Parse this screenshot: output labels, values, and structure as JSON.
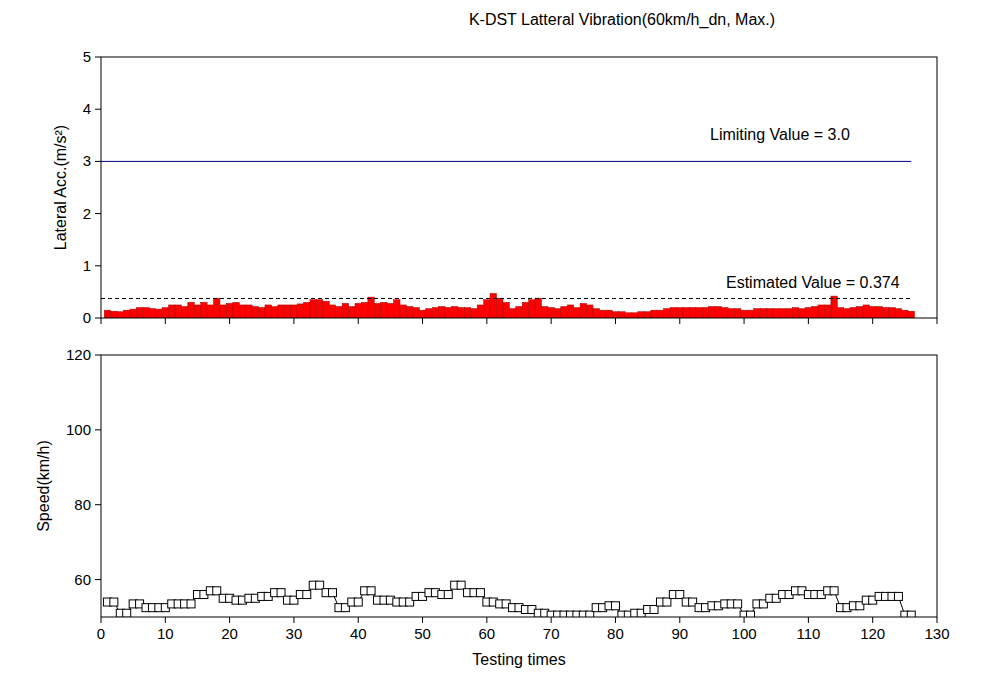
{
  "chart_data": [
    {
      "type": "bar",
      "title": "K-DST Latteral Vibration(60km/h_dn, Max.)",
      "y_label": "Lateral Acc.(m/s²)",
      "x": [
        1,
        2,
        3,
        4,
        5,
        6,
        7,
        8,
        9,
        10,
        11,
        12,
        13,
        14,
        15,
        16,
        17,
        18,
        19,
        20,
        21,
        22,
        23,
        24,
        25,
        26,
        27,
        28,
        29,
        30,
        31,
        32,
        33,
        34,
        35,
        36,
        37,
        38,
        39,
        40,
        41,
        42,
        43,
        44,
        45,
        46,
        47,
        48,
        49,
        50,
        51,
        52,
        53,
        54,
        55,
        56,
        57,
        58,
        59,
        60,
        61,
        62,
        63,
        64,
        65,
        66,
        67,
        68,
        69,
        70,
        71,
        72,
        73,
        74,
        75,
        76,
        77,
        78,
        79,
        80,
        81,
        82,
        83,
        84,
        85,
        86,
        87,
        88,
        89,
        90,
        91,
        92,
        93,
        94,
        95,
        96,
        97,
        98,
        99,
        100,
        101,
        102,
        103,
        104,
        105,
        106,
        107,
        108,
        109,
        110,
        111,
        112,
        113,
        114,
        115,
        116,
        117,
        118,
        119,
        120,
        121,
        122,
        123,
        124,
        125,
        126
      ],
      "values": [
        0.15,
        0.13,
        0.12,
        0.15,
        0.17,
        0.2,
        0.2,
        0.18,
        0.17,
        0.2,
        0.25,
        0.25,
        0.22,
        0.3,
        0.25,
        0.3,
        0.25,
        0.38,
        0.25,
        0.28,
        0.3,
        0.25,
        0.25,
        0.22,
        0.2,
        0.25,
        0.22,
        0.25,
        0.25,
        0.25,
        0.27,
        0.3,
        0.35,
        0.35,
        0.32,
        0.25,
        0.22,
        0.28,
        0.22,
        0.28,
        0.3,
        0.4,
        0.28,
        0.3,
        0.28,
        0.35,
        0.25,
        0.22,
        0.2,
        0.15,
        0.18,
        0.2,
        0.22,
        0.2,
        0.22,
        0.2,
        0.2,
        0.18,
        0.25,
        0.35,
        0.47,
        0.38,
        0.3,
        0.18,
        0.22,
        0.3,
        0.35,
        0.38,
        0.22,
        0.2,
        0.18,
        0.22,
        0.25,
        0.2,
        0.28,
        0.25,
        0.18,
        0.15,
        0.15,
        0.12,
        0.12,
        0.1,
        0.1,
        0.12,
        0.12,
        0.15,
        0.15,
        0.18,
        0.2,
        0.2,
        0.2,
        0.2,
        0.2,
        0.2,
        0.22,
        0.22,
        0.2,
        0.18,
        0.18,
        0.15,
        0.15,
        0.18,
        0.18,
        0.18,
        0.18,
        0.18,
        0.18,
        0.2,
        0.18,
        0.2,
        0.22,
        0.25,
        0.25,
        0.42,
        0.2,
        0.18,
        0.2,
        0.22,
        0.25,
        0.22,
        0.22,
        0.2,
        0.2,
        0.18,
        0.15,
        0.13
      ],
      "color": "#ff0000",
      "xlim": [
        0,
        130
      ],
      "xticks": [
        0,
        10,
        20,
        30,
        40,
        50,
        60,
        70,
        80,
        90,
        100,
        110,
        120,
        130
      ],
      "ylim": [
        0,
        5
      ],
      "yticks": [
        0,
        1,
        2,
        3,
        4,
        5
      ],
      "tick_labels": "y",
      "reference_lines": [
        {
          "label": "Limiting Value = 3.0",
          "value": 3.0,
          "color": "#000080",
          "line_style": "solid"
        },
        {
          "label": "Estimated Value = 0.374",
          "value": 0.374,
          "color": "#000000",
          "line_style": "dashed"
        }
      ]
    },
    {
      "type": "line",
      "x_label": "Testing times",
      "y_label": "Speed(km/h)",
      "x": [
        1,
        2,
        3,
        4,
        5,
        6,
        7,
        8,
        9,
        10,
        11,
        12,
        13,
        14,
        15,
        16,
        17,
        18,
        19,
        20,
        21,
        22,
        23,
        24,
        25,
        26,
        27,
        28,
        29,
        30,
        31,
        32,
        33,
        34,
        35,
        36,
        37,
        38,
        39,
        40,
        41,
        42,
        43,
        44,
        45,
        46,
        47,
        48,
        49,
        50,
        51,
        52,
        53,
        54,
        55,
        56,
        57,
        58,
        59,
        60,
        61,
        62,
        63,
        64,
        65,
        66,
        67,
        68,
        69,
        70,
        71,
        72,
        73,
        74,
        75,
        76,
        77,
        78,
        79,
        80,
        81,
        82,
        83,
        84,
        85,
        86,
        87,
        88,
        89,
        90,
        91,
        92,
        93,
        94,
        95,
        96,
        97,
        98,
        99,
        100,
        101,
        102,
        103,
        104,
        105,
        106,
        107,
        108,
        109,
        110,
        111,
        112,
        113,
        114,
        115,
        116,
        117,
        118,
        119,
        120,
        121,
        122,
        123,
        124,
        125,
        126
      ],
      "values": [
        54,
        54,
        51,
        51,
        53.5,
        53.5,
        52.5,
        52.5,
        52.5,
        52.5,
        53.5,
        53.5,
        53.5,
        53.5,
        56,
        56,
        57,
        57,
        55,
        55,
        54.5,
        54.5,
        55,
        55,
        55.5,
        55.5,
        56.5,
        56.5,
        54.5,
        54.5,
        56,
        56,
        58.5,
        58.5,
        56.5,
        56.5,
        52.5,
        52.5,
        54,
        54,
        57,
        57,
        54.5,
        54.5,
        54.5,
        54,
        54,
        54,
        55.5,
        55.5,
        56.5,
        56.5,
        56,
        56,
        58.5,
        58.5,
        56.5,
        56.5,
        56.5,
        54,
        54,
        53.5,
        53.5,
        52.5,
        52.5,
        52,
        52,
        51,
        51,
        50.5,
        50.5,
        50.5,
        50.5,
        50.5,
        50.5,
        50.5,
        52.5,
        52.5,
        53,
        53,
        50.5,
        50.5,
        51,
        51,
        52,
        52,
        54,
        54,
        56,
        56,
        54,
        54,
        52.5,
        52.5,
        53,
        53,
        53.5,
        53.5,
        53.5,
        50.5,
        50.5,
        53.5,
        53.5,
        55,
        55,
        56,
        56,
        57,
        57,
        56,
        56,
        56,
        57,
        57,
        52.5,
        52.5,
        53,
        53,
        54.5,
        54.5,
        55.5,
        55.5,
        55.5,
        55.5,
        50.5,
        50.5
      ],
      "color": "#000000",
      "marker": "square",
      "xlim": [
        0,
        130
      ],
      "xticks": [
        0,
        10,
        20,
        30,
        40,
        50,
        60,
        70,
        80,
        90,
        100,
        110,
        120,
        130
      ],
      "ylim": [
        50,
        120
      ],
      "yticks": [
        60,
        80,
        100,
        120
      ]
    }
  ]
}
